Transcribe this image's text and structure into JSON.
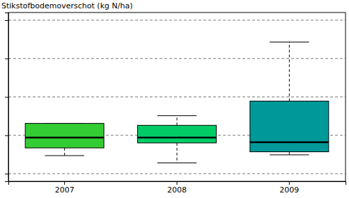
{
  "chart_data": {
    "type": "boxplot",
    "title": "Stikstofbodemoverschot (kg N/ha)",
    "categories": [
      "2007",
      "2008",
      "2009"
    ],
    "min": [
      47,
      28,
      49
    ],
    "q1": [
      67,
      80,
      57
    ],
    "median": [
      94,
      94,
      82
    ],
    "q3": [
      131,
      126,
      189
    ],
    "max": [
      131,
      151,
      343
    ],
    "colors": [
      "#33cc33",
      "#00cc66",
      "#009999"
    ],
    "ylim": [
      -20,
      420
    ],
    "yticks": [
      0,
      100,
      200,
      300,
      400
    ],
    "grid": true,
    "tick_labels": "x"
  }
}
